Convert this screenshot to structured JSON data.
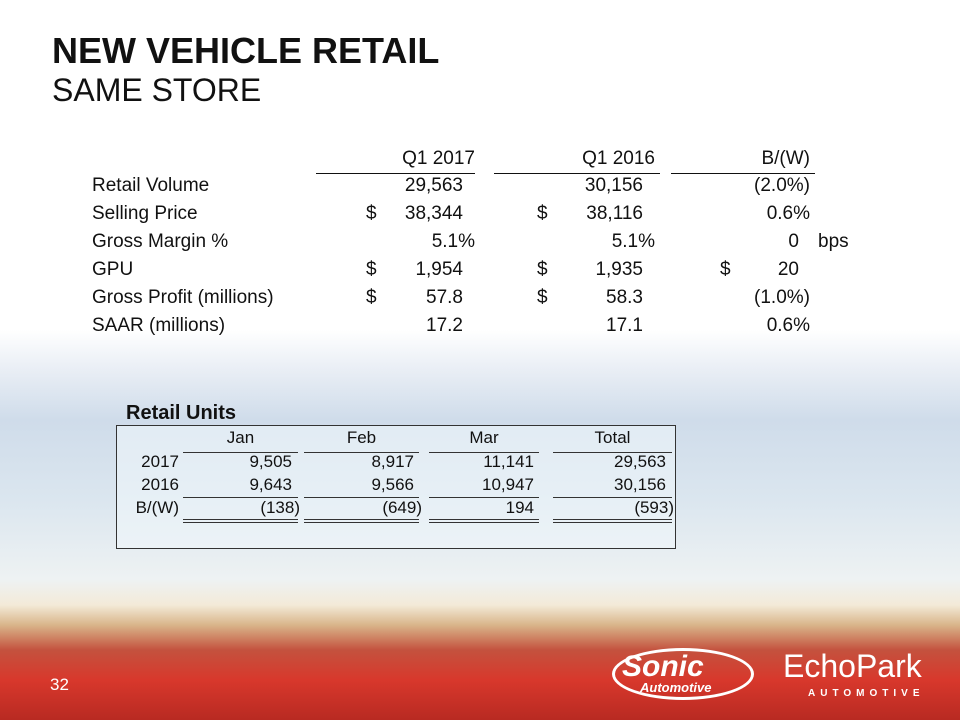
{
  "slide": {
    "title": "NEW VEHICLE RETAIL",
    "subtitle": "SAME STORE",
    "page_number": "32"
  },
  "summary": {
    "headers": [
      "Q1 2017",
      "Q1 2016",
      "B/(W)"
    ],
    "rows": [
      {
        "label": "Retail Volume",
        "q1_2017": "29,563",
        "q1_2016": "30,156",
        "bw": "(2.0%)",
        "d1": "",
        "d2": "",
        "d3": "",
        "unit": ""
      },
      {
        "label": "Selling Price",
        "q1_2017": "38,344",
        "q1_2016": "38,116",
        "bw": "0.6%",
        "d1": "$",
        "d2": "$",
        "d3": "",
        "unit": ""
      },
      {
        "label": "Gross Margin %",
        "q1_2017": "5.1%",
        "q1_2016": "5.1%",
        "bw": "0",
        "d1": "",
        "d2": "",
        "d3": "",
        "unit": "bps"
      },
      {
        "label": "GPU",
        "q1_2017": "1,954",
        "q1_2016": "1,935",
        "bw": "20",
        "d1": "$",
        "d2": "$",
        "d3": "$",
        "unit": ""
      },
      {
        "label": "Gross Profit (millions)",
        "q1_2017": "57.8",
        "q1_2016": "58.3",
        "bw": "(1.0%)",
        "d1": "$",
        "d2": "$",
        "d3": "",
        "unit": ""
      },
      {
        "label": "SAAR (millions)",
        "q1_2017": "17.2",
        "q1_2016": "17.1",
        "bw": "0.6%",
        "d1": "",
        "d2": "",
        "d3": "",
        "unit": ""
      }
    ]
  },
  "retail_units": {
    "title": "Retail Units",
    "headers": [
      "Jan",
      "Feb",
      "Mar",
      "Total"
    ],
    "rows": [
      {
        "label": "2017",
        "values": [
          "9,505",
          "8,917",
          "11,141",
          "29,563"
        ]
      },
      {
        "label": "2016",
        "values": [
          "9,643",
          "9,566",
          "10,947",
          "30,156"
        ]
      },
      {
        "label": "B/(W)",
        "values": [
          "(138)",
          "(649)",
          "194",
          "(593)"
        ]
      }
    ]
  },
  "logos": {
    "sonic": "Sonic",
    "sonic_sub": "Automotive",
    "echopark": "EchoPark",
    "echopark_sub": "AUTOMOTIVE"
  },
  "colors": {
    "road_red": "#d8382c"
  }
}
